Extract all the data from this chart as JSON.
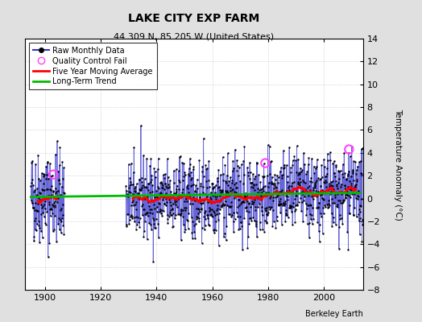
{
  "title": "LAKE CITY EXP FARM",
  "subtitle": "44.309 N, 85.205 W (United States)",
  "ylabel": "Temperature Anomaly (°C)",
  "attribution": "Berkeley Earth",
  "xlim": [
    1893,
    2014
  ],
  "ylim": [
    -8,
    14
  ],
  "yticks": [
    -8,
    -6,
    -4,
    -2,
    0,
    2,
    4,
    6,
    8,
    10,
    12,
    14
  ],
  "xticks": [
    1900,
    1920,
    1940,
    1960,
    1980,
    2000
  ],
  "year_start": 1895,
  "year_end": 2013,
  "seed": 42,
  "background_color": "#e0e0e0",
  "plot_bg_color": "#ffffff",
  "raw_line_color": "#3333cc",
  "raw_dot_color": "#000000",
  "moving_avg_color": "#ff0000",
  "trend_color": "#00bb00",
  "qc_fail_color": "#ff44ff",
  "early_end": 1907,
  "late_start": 1929,
  "qc_fail_points": [
    [
      1903,
      2.1
    ],
    [
      1979,
      3.1
    ],
    [
      2009,
      4.3
    ]
  ],
  "trend_slope": 0.003,
  "trend_intercept": 0.3,
  "legend_labels": [
    "Raw Monthly Data",
    "Quality Control Fail",
    "Five Year Moving Average",
    "Long-Term Trend"
  ]
}
